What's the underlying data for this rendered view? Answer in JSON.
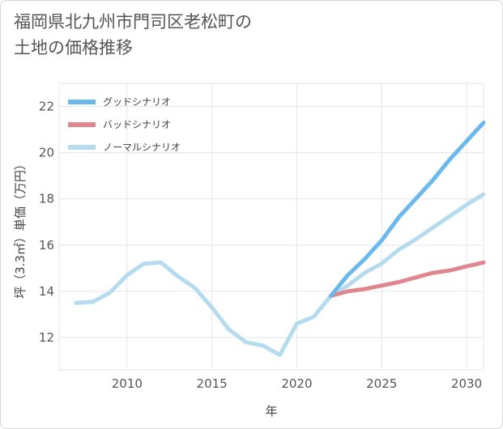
{
  "title_line1": "福岡県北九州市門司区老松町の",
  "title_line2": "土地の価格推移",
  "chart_data": {
    "type": "line",
    "xlabel": "年",
    "ylabel": "坪（3.3㎡）単価（万円）",
    "xlim": [
      2006,
      2031
    ],
    "ylim": [
      10.6,
      23.0
    ],
    "x_ticks": [
      2010,
      2015,
      2020,
      2025,
      2030
    ],
    "y_ticks": [
      12,
      14,
      16,
      18,
      20,
      22
    ],
    "grid": true,
    "legend_position": "top-left",
    "series": [
      {
        "name": "グッドシナリオ",
        "color": "#6bb9ec",
        "x": [
          2022,
          2023,
          2024,
          2025,
          2026,
          2027,
          2028,
          2029,
          2030,
          2031
        ],
        "values": [
          13.8,
          14.7,
          15.4,
          16.2,
          17.2,
          18.0,
          18.8,
          19.7,
          20.5,
          21.3
        ]
      },
      {
        "name": "バッドシナリオ",
        "color": "#e0868f",
        "x": [
          2022,
          2023,
          2024,
          2025,
          2026,
          2027,
          2028,
          2029,
          2030,
          2031
        ],
        "values": [
          13.8,
          14.0,
          14.1,
          14.25,
          14.4,
          14.6,
          14.8,
          14.9,
          15.08,
          15.25
        ]
      },
      {
        "name": "ノーマルシナリオ",
        "color": "#b5dcee",
        "x": [
          2007,
          2008,
          2009,
          2010,
          2011,
          2012,
          2013,
          2014,
          2015,
          2016,
          2017,
          2018,
          2019,
          2020,
          2021,
          2022,
          2023,
          2024,
          2025,
          2026,
          2027,
          2028,
          2029,
          2030,
          2031
        ],
        "values": [
          13.5,
          13.55,
          13.95,
          14.7,
          15.2,
          15.25,
          14.65,
          14.15,
          13.3,
          12.35,
          11.8,
          11.65,
          11.25,
          12.6,
          12.9,
          13.8,
          14.25,
          14.8,
          15.2,
          15.8,
          16.25,
          16.75,
          17.25,
          17.75,
          18.2
        ]
      }
    ]
  }
}
